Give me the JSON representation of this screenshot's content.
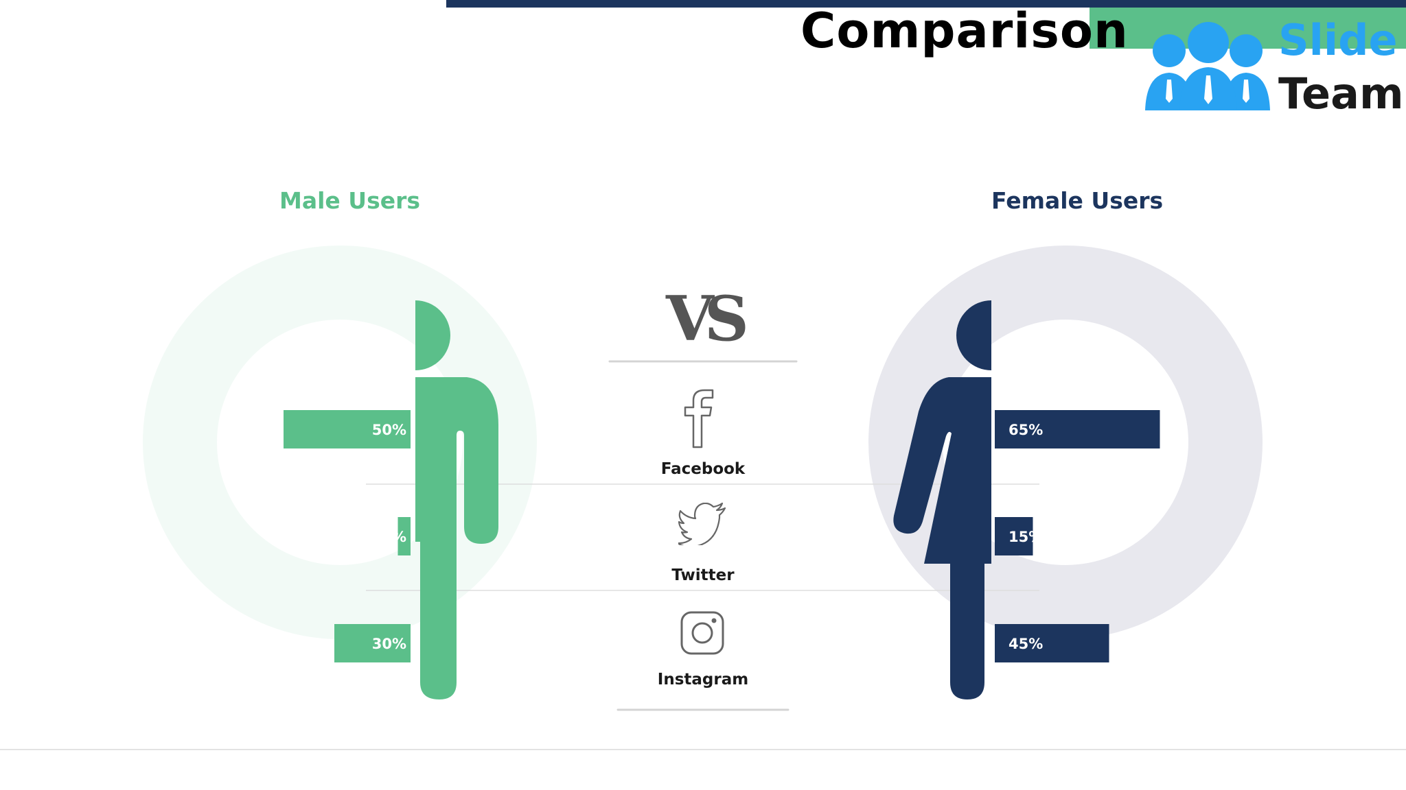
{
  "slide": {
    "title": "Comparison",
    "logo_line1": "Slide",
    "logo_line2": "Team"
  },
  "colors": {
    "male": "#5bbf8a",
    "female": "#1c355e",
    "navy": "#1c355e",
    "logo_blue": "#29a3f2"
  },
  "columns": {
    "male_title": "Male Users",
    "female_title": "Female Users",
    "vs_text": "VS"
  },
  "platforms": [
    {
      "label": "Facebook",
      "icon": "facebook-icon"
    },
    {
      "label": "Twitter",
      "icon": "twitter-icon"
    },
    {
      "label": "Instagram",
      "icon": "instagram-icon"
    }
  ],
  "chart_data": {
    "type": "bar",
    "categories": [
      "Facebook",
      "Twitter",
      "Instagram"
    ],
    "series": [
      {
        "name": "Male Users",
        "values": [
          50,
          5,
          30
        ],
        "labels": [
          "50%",
          "5%",
          "30%"
        ]
      },
      {
        "name": "Female Users",
        "values": [
          65,
          15,
          45
        ],
        "labels": [
          "65%",
          "15%",
          "45%"
        ]
      }
    ],
    "unit": "%"
  }
}
